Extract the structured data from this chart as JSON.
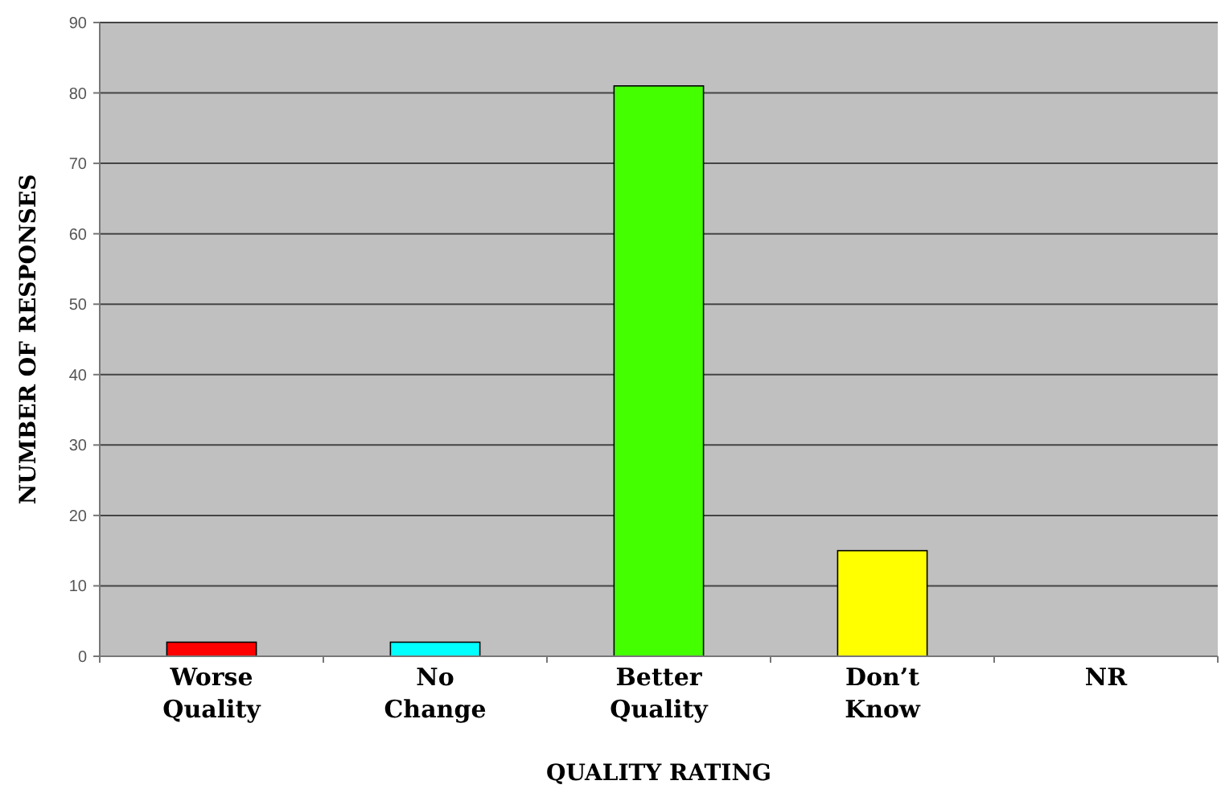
{
  "chart_data": {
    "type": "bar",
    "xlabel": "QUALITY RATING",
    "ylabel": "NUMBER OF RESPONSES",
    "categories": [
      "Worse Quality",
      "No Change",
      "Better Quality",
      "Don’t Know",
      "NR"
    ],
    "values": [
      2,
      2,
      81,
      15,
      0
    ],
    "colors": [
      "#ff0000",
      "#00ffff",
      "#44ff00",
      "#ffff00",
      "#c0c0c0"
    ],
    "ylim": [
      0,
      90
    ],
    "yticks": [
      0,
      10,
      20,
      30,
      40,
      50,
      60,
      70,
      80,
      90
    ],
    "grid": "y"
  }
}
